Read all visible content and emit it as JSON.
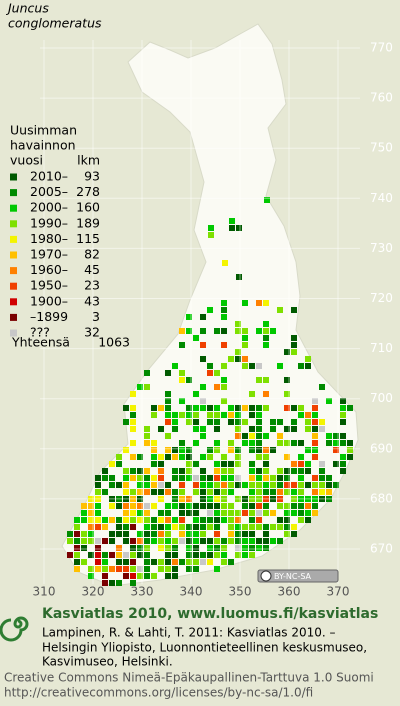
{
  "map": {
    "species": [
      "Juncus",
      "conglomeratus"
    ],
    "grid_north": [
      770,
      760,
      750,
      740,
      730,
      720,
      710,
      700,
      690,
      680,
      670
    ],
    "grid_east": [
      310,
      320,
      330,
      340,
      350,
      360,
      370
    ],
    "legend_title": [
      "Uusimman",
      "havainnon",
      "vuosi"
    ],
    "count_header": "lkm",
    "legend": [
      {
        "label": "2010–",
        "count": 93,
        "color": "#005a00"
      },
      {
        "label": "2005–",
        "count": 278,
        "color": "#008a00"
      },
      {
        "label": "2000–",
        "count": 160,
        "color": "#00c800"
      },
      {
        "label": "1990–",
        "count": 189,
        "color": "#7ee000"
      },
      {
        "label": "1980–",
        "count": 115,
        "color": "#f4f400"
      },
      {
        "label": "1970–",
        "count": 82,
        "color": "#ffc000"
      },
      {
        "label": "1960–",
        "count": 45,
        "color": "#ff8000"
      },
      {
        "label": "1950–",
        "count": 23,
        "color": "#f04000"
      },
      {
        "label": "1900–",
        "count": 43,
        "color": "#d00000"
      },
      {
        "label": "–1899",
        "count": 3,
        "color": "#7a0000"
      },
      {
        "label": "???",
        "count": 32,
        "color": "#c8c8c8"
      }
    ],
    "total_label": "Yhteensä",
    "total": 1063,
    "license_badge": "BY-NC-SA"
  },
  "footer": {
    "title": "Kasviatlas 2010, www.luomus.fi/kasviatlas",
    "citation": [
      "Lampinen, R. & Lahti, T. 2011: Kasviatlas 2010. –",
      "Helsingin Yliopisto, Luonnontieteellinen keskusmuseo,",
      "Kasvimuseo, Helsinki."
    ],
    "license": [
      "Creative Commons Nimeä-Epäkaupallinen-Tarttuva 1.0 Suomi",
      "http://creativecommons.org/licenses/by-nc-sa/1.0/fi"
    ]
  }
}
